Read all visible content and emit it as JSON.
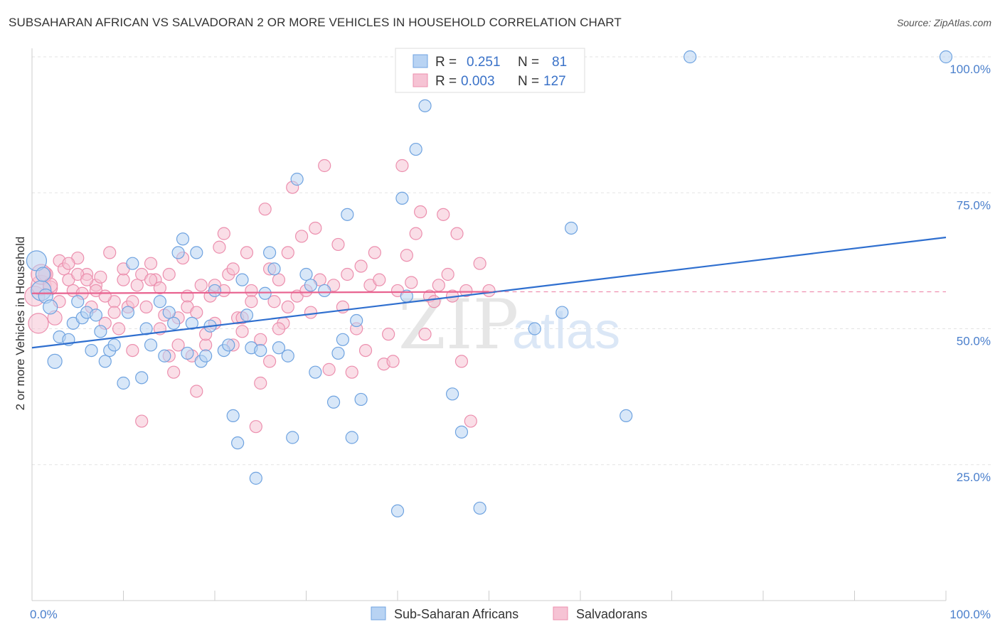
{
  "title": "SUBSAHARAN AFRICAN VS SALVADORAN 2 OR MORE VEHICLES IN HOUSEHOLD CORRELATION CHART",
  "source": "Source: ZipAtlas.com",
  "watermark": {
    "zip": "ZIP",
    "atlas": "atlas"
  },
  "colors": {
    "blue": "#6fa3e0",
    "blue_fill": "#b8d3f3",
    "blue_line": "#2f6fcf",
    "pink": "#ec8fae",
    "pink_fill": "#f6c3d4",
    "pink_line": "#e8628f",
    "axis_text": "#4a7fcc"
  },
  "legend": {
    "r_label": "R =",
    "n_label": "N =",
    "rows": [
      {
        "r": "0.251",
        "n": "81",
        "series": "blue"
      },
      {
        "r": "0.003",
        "n": "127",
        "series": "pink"
      }
    ]
  },
  "chart_data": {
    "type": "scatter",
    "xlabel": "",
    "ylabel": "2 or more Vehicles in Household",
    "xlim": [
      0,
      100
    ],
    "ylim": [
      0,
      100
    ],
    "x_tick_labels": [
      "0.0%",
      "100.0%"
    ],
    "y_ticks": [
      25,
      50,
      75,
      100
    ],
    "y_tick_labels": [
      "25.0%",
      "50.0%",
      "75.0%",
      "100.0%"
    ],
    "grid": true,
    "legend_position": "top-center",
    "series": [
      {
        "name": "Sub-Saharan Africans",
        "color": "blue",
        "trend": {
          "x": [
            0,
            100
          ],
          "y": [
            46.5,
            66.8
          ]
        },
        "points": [
          [
            0.5,
            62.5
          ],
          [
            1,
            57
          ],
          [
            1.5,
            56
          ],
          [
            2,
            54
          ],
          [
            1.2,
            60
          ],
          [
            2.5,
            44
          ],
          [
            3,
            48.5
          ],
          [
            4,
            48
          ],
          [
            4.5,
            51
          ],
          [
            5,
            55
          ],
          [
            5.5,
            52
          ],
          [
            6,
            53
          ],
          [
            6.5,
            46
          ],
          [
            7,
            52.5
          ],
          [
            7.5,
            49.5
          ],
          [
            8,
            44
          ],
          [
            8.5,
            46
          ],
          [
            9,
            47
          ],
          [
            10,
            40
          ],
          [
            10.5,
            53
          ],
          [
            11,
            62
          ],
          [
            12,
            41
          ],
          [
            12.5,
            50
          ],
          [
            13,
            47
          ],
          [
            14,
            55
          ],
          [
            14.5,
            45
          ],
          [
            15,
            53
          ],
          [
            15.5,
            51
          ],
          [
            16,
            64
          ],
          [
            16.5,
            66.5
          ],
          [
            17,
            45.5
          ],
          [
            17.5,
            51
          ],
          [
            18,
            64
          ],
          [
            18.5,
            44
          ],
          [
            19,
            45
          ],
          [
            19.5,
            50.5
          ],
          [
            20,
            57
          ],
          [
            21,
            46
          ],
          [
            21.5,
            47
          ],
          [
            22,
            34
          ],
          [
            22.5,
            29
          ],
          [
            23,
            59
          ],
          [
            23.5,
            52.5
          ],
          [
            24,
            46.5
          ],
          [
            24.5,
            22.5
          ],
          [
            25,
            46
          ],
          [
            25.5,
            56.5
          ],
          [
            26,
            64
          ],
          [
            26.5,
            61
          ],
          [
            27,
            46.5
          ],
          [
            28,
            45
          ],
          [
            28.5,
            30
          ],
          [
            29,
            77.5
          ],
          [
            30,
            60
          ],
          [
            30.5,
            58
          ],
          [
            31,
            42
          ],
          [
            32,
            57
          ],
          [
            33,
            36.5
          ],
          [
            33.5,
            45.5
          ],
          [
            34,
            48
          ],
          [
            34.5,
            71
          ],
          [
            35,
            30
          ],
          [
            35.5,
            51.5
          ],
          [
            36,
            37
          ],
          [
            40,
            16.5
          ],
          [
            40.5,
            74
          ],
          [
            41,
            56
          ],
          [
            42,
            83
          ],
          [
            43,
            91
          ],
          [
            46,
            38
          ],
          [
            47,
            31
          ],
          [
            49,
            17
          ],
          [
            55,
            50
          ],
          [
            58,
            53
          ],
          [
            59,
            68.5
          ],
          [
            65,
            34
          ],
          [
            72,
            100
          ],
          [
            100,
            100
          ]
        ]
      },
      {
        "name": "Salvadorans",
        "color": "pink",
        "trend": {
          "x": [
            0,
            50
          ],
          "y": [
            56.5,
            56.8
          ]
        },
        "dashed_extension": {
          "x": [
            50,
            100
          ],
          "y": [
            56.8,
            56.8
          ]
        },
        "points": [
          [
            0.3,
            56
          ],
          [
            0.7,
            51
          ],
          [
            1,
            58
          ],
          [
            1.5,
            60
          ],
          [
            2,
            57.5
          ],
          [
            2.5,
            52
          ],
          [
            3,
            62.5
          ],
          [
            3.5,
            61
          ],
          [
            4,
            59
          ],
          [
            4.5,
            57
          ],
          [
            5,
            63
          ],
          [
            5.5,
            56.5
          ],
          [
            6,
            60
          ],
          [
            6.5,
            54
          ],
          [
            7,
            58
          ],
          [
            7.5,
            59.5
          ],
          [
            8,
            51
          ],
          [
            8.5,
            64
          ],
          [
            9,
            55
          ],
          [
            9.5,
            50
          ],
          [
            10,
            59
          ],
          [
            10.5,
            54
          ],
          [
            11,
            46
          ],
          [
            11.5,
            58
          ],
          [
            12,
            33
          ],
          [
            12.5,
            54
          ],
          [
            13,
            62
          ],
          [
            13.5,
            59
          ],
          [
            14,
            57.5
          ],
          [
            14.5,
            52.5
          ],
          [
            15,
            60
          ],
          [
            15.5,
            42
          ],
          [
            16,
            47
          ],
          [
            16.5,
            63
          ],
          [
            17,
            56
          ],
          [
            17.5,
            45
          ],
          [
            18,
            38.5
          ],
          [
            18.5,
            58
          ],
          [
            19,
            47
          ],
          [
            19.5,
            56
          ],
          [
            20,
            51
          ],
          [
            20.5,
            65
          ],
          [
            21,
            67.5
          ],
          [
            21.5,
            60
          ],
          [
            22,
            61
          ],
          [
            22.5,
            52
          ],
          [
            23,
            49.5
          ],
          [
            23.5,
            64
          ],
          [
            24,
            57
          ],
          [
            24.5,
            32
          ],
          [
            25,
            40
          ],
          [
            25.5,
            72
          ],
          [
            26,
            61
          ],
          [
            26.5,
            55
          ],
          [
            27,
            59
          ],
          [
            27.5,
            51
          ],
          [
            28,
            64
          ],
          [
            28.5,
            76
          ],
          [
            29,
            56
          ],
          [
            29.5,
            67
          ],
          [
            30,
            57
          ],
          [
            30.5,
            53
          ],
          [
            31,
            68.5
          ],
          [
            31.5,
            59
          ],
          [
            32,
            80
          ],
          [
            32.5,
            42.5
          ],
          [
            33,
            58
          ],
          [
            33.5,
            65.5
          ],
          [
            34,
            54
          ],
          [
            34.5,
            60
          ],
          [
            35,
            42
          ],
          [
            35.5,
            50
          ],
          [
            36,
            61.5
          ],
          [
            36.5,
            46
          ],
          [
            37,
            58
          ],
          [
            37.5,
            64
          ],
          [
            38,
            59
          ],
          [
            38.5,
            43.5
          ],
          [
            39,
            49
          ],
          [
            39.5,
            44
          ],
          [
            40,
            57
          ],
          [
            40.5,
            80
          ],
          [
            41,
            63.5
          ],
          [
            41.5,
            58.5
          ],
          [
            42,
            67.5
          ],
          [
            42.5,
            71.5
          ],
          [
            43,
            49
          ],
          [
            43.5,
            56
          ],
          [
            44,
            55
          ],
          [
            44.5,
            58
          ],
          [
            45,
            71
          ],
          [
            45.5,
            60
          ],
          [
            46,
            56
          ],
          [
            46.5,
            67.5
          ],
          [
            47,
            44
          ],
          [
            47.5,
            57
          ],
          [
            48,
            33
          ],
          [
            49,
            62
          ],
          [
            50,
            57
          ],
          [
            1,
            60
          ],
          [
            2,
            58
          ],
          [
            3,
            55
          ],
          [
            4,
            62
          ],
          [
            5,
            60
          ],
          [
            6,
            59
          ],
          [
            7,
            57
          ],
          [
            8,
            56
          ],
          [
            9,
            53
          ],
          [
            10,
            61
          ],
          [
            11,
            55
          ],
          [
            12,
            60
          ],
          [
            13,
            59
          ],
          [
            14,
            50
          ],
          [
            15,
            45
          ],
          [
            16,
            52
          ],
          [
            17,
            54
          ],
          [
            18,
            53
          ],
          [
            19,
            49
          ],
          [
            20,
            58
          ],
          [
            21,
            57
          ],
          [
            22,
            47
          ],
          [
            23,
            52
          ],
          [
            24,
            55
          ],
          [
            25,
            48
          ],
          [
            26,
            44
          ],
          [
            27,
            50
          ],
          [
            28,
            54
          ]
        ]
      }
    ]
  }
}
